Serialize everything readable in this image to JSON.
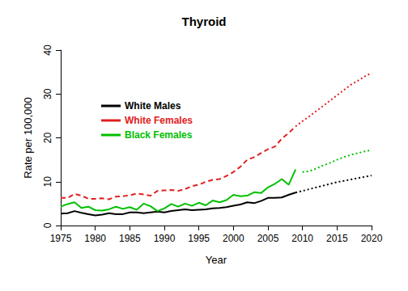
{
  "chart_data": {
    "type": "line",
    "title": "Thyroid",
    "x_label": "Year",
    "y_label": "Rate per 100,000",
    "x": [
      1975,
      1976,
      1977,
      1978,
      1979,
      1980,
      1981,
      1982,
      1983,
      1984,
      1985,
      1986,
      1987,
      1988,
      1989,
      1990,
      1991,
      1992,
      1993,
      1994,
      1995,
      1996,
      1997,
      1998,
      1999,
      2000,
      2001,
      2002,
      2003,
      2004,
      2005,
      2006,
      2007,
      2008,
      2009,
      2010,
      2011,
      2012,
      2013,
      2014,
      2015,
      2016,
      2017,
      2018,
      2019,
      2020
    ],
    "xlim": [
      1975,
      2020
    ],
    "xticks": [
      1975,
      1980,
      1985,
      1990,
      1995,
      2000,
      2005,
      2010,
      2015,
      2020
    ],
    "ylim": [
      0,
      40
    ],
    "yticks": [
      0,
      10,
      20,
      30,
      40
    ],
    "grid": false,
    "legend": "upper left",
    "series": [
      {
        "name": "White Males",
        "color": "#000000",
        "line_style": "solid",
        "values": [
          2.7,
          2.8,
          3.3,
          2.9,
          2.6,
          2.3,
          2.5,
          2.8,
          2.6,
          2.6,
          3.0,
          3.0,
          2.8,
          3.0,
          3.2,
          3.0,
          3.3,
          3.5,
          3.7,
          3.5,
          3.6,
          3.7,
          3.9,
          4.0,
          4.2,
          4.5,
          4.8,
          5.3,
          5.1,
          5.6,
          6.3,
          6.3,
          6.4,
          7.0,
          7.5,
          null,
          null,
          null,
          null,
          null,
          null,
          null,
          null,
          null,
          null,
          null
        ]
      },
      {
        "name": "White Females",
        "color": "#e02020",
        "line_style": "dashed",
        "values": [
          6.3,
          6.3,
          7.2,
          6.8,
          6.1,
          6.1,
          6.2,
          6.0,
          6.6,
          6.7,
          6.9,
          7.3,
          7.1,
          6.8,
          7.9,
          8.0,
          8.1,
          7.9,
          8.3,
          9.0,
          9.3,
          10.0,
          10.4,
          10.6,
          11.3,
          12.2,
          13.4,
          15.0,
          15.6,
          16.5,
          17.4,
          18.0,
          19.8,
          21.1,
          22.6,
          null,
          null,
          null,
          null,
          null,
          null,
          null,
          null,
          null,
          null,
          null
        ]
      },
      {
        "name": "Black Females",
        "color": "#00c000",
        "line_style": "solid",
        "values": [
          4.3,
          4.9,
          5.3,
          4.0,
          4.3,
          3.5,
          3.4,
          3.7,
          4.3,
          3.8,
          4.2,
          3.6,
          5.0,
          4.4,
          3.3,
          3.9,
          4.9,
          4.3,
          5.0,
          4.5,
          5.2,
          4.6,
          5.7,
          5.3,
          5.8,
          7.0,
          6.7,
          6.8,
          7.6,
          7.4,
          8.7,
          9.5,
          10.6,
          9.3,
          12.8,
          null,
          null,
          null,
          null,
          null,
          null,
          null,
          null,
          null,
          null,
          null
        ]
      },
      {
        "name": "White Males",
        "color": "#000000",
        "line_style": "dotted",
        "values": [
          null,
          null,
          null,
          null,
          null,
          null,
          null,
          null,
          null,
          null,
          null,
          null,
          null,
          null,
          null,
          null,
          null,
          null,
          null,
          null,
          null,
          null,
          null,
          null,
          null,
          null,
          null,
          null,
          null,
          null,
          null,
          null,
          null,
          null,
          7.5,
          7.9,
          8.3,
          8.7,
          9.1,
          9.5,
          9.9,
          10.2,
          10.5,
          10.8,
          11.1,
          11.4
        ]
      },
      {
        "name": "White Females",
        "color": "#e02020",
        "line_style": "dotted",
        "values": [
          null,
          null,
          null,
          null,
          null,
          null,
          null,
          null,
          null,
          null,
          null,
          null,
          null,
          null,
          null,
          null,
          null,
          null,
          null,
          null,
          null,
          null,
          null,
          null,
          null,
          null,
          null,
          null,
          null,
          null,
          null,
          null,
          null,
          null,
          22.6,
          23.8,
          24.9,
          26.1,
          27.3,
          28.5,
          29.7,
          30.9,
          32.1,
          33.0,
          34.0,
          34.8
        ]
      },
      {
        "name": "Black Females",
        "color": "#00c000",
        "line_style": "dotted",
        "values": [
          null,
          null,
          null,
          null,
          null,
          null,
          null,
          null,
          null,
          null,
          null,
          null,
          null,
          null,
          null,
          null,
          null,
          null,
          null,
          null,
          null,
          null,
          null,
          null,
          null,
          null,
          null,
          null,
          null,
          null,
          null,
          null,
          null,
          null,
          null,
          12.2,
          12.4,
          13.0,
          13.7,
          14.3,
          15.0,
          15.6,
          16.1,
          16.5,
          16.9,
          17.2
        ]
      }
    ]
  }
}
